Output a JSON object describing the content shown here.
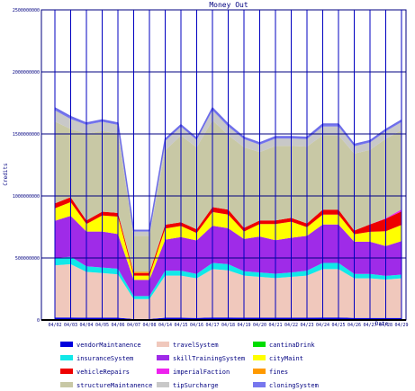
{
  "chart_data": {
    "type": "area",
    "stacked": true,
    "title": "Money Out",
    "xlabel": "Date",
    "ylabel": "Credits",
    "ylim": [
      0,
      2500000000
    ],
    "y_ticks": [
      0,
      500000000,
      1000000000,
      1500000000,
      2000000000,
      2500000000
    ],
    "y_tick_labels": [
      "0",
      "500000000",
      "1000000000",
      "1500000000",
      "2000000000",
      "2500000000"
    ],
    "x_tick_labels": [
      "04/02",
      "04/03",
      "04/04",
      "04/05",
      "04/06",
      "04/07",
      "04/08",
      "04/14",
      "04/15",
      "04/16",
      "04/17",
      "04/18",
      "04/19",
      "04/20",
      "04/21",
      "04/22",
      "04/23",
      "04/24",
      "04/25",
      "04/26",
      "04/27",
      "04/28",
      "04/29"
    ],
    "x": [
      "04/02",
      "04/03",
      "04/04",
      "04/05",
      "04/06",
      "04/07",
      "04/08",
      "04/14",
      "04/15",
      "04/16",
      "04/17",
      "04/18",
      "04/19",
      "04/20",
      "04/21",
      "04/22",
      "04/23",
      "04/24",
      "04/25",
      "04/26",
      "04/27",
      "04/28",
      "04/29"
    ],
    "grid": true,
    "legend_position": "bottom",
    "series": [
      {
        "name": "vendorMaintanence",
        "color": "#0000dd",
        "values": [
          20000000,
          20000000,
          18000000,
          18000000,
          18000000,
          8000000,
          8000000,
          18000000,
          18000000,
          16000000,
          20000000,
          20000000,
          18000000,
          18000000,
          18000000,
          18000000,
          18000000,
          20000000,
          20000000,
          16000000,
          16000000,
          16000000,
          16000000
        ]
      },
      {
        "name": "travelSystem",
        "color": "#f0c8bc",
        "values": [
          420000000,
          430000000,
          370000000,
          360000000,
          350000000,
          160000000,
          160000000,
          340000000,
          340000000,
          320000000,
          390000000,
          380000000,
          340000000,
          330000000,
          320000000,
          330000000,
          340000000,
          390000000,
          390000000,
          320000000,
          320000000,
          310000000,
          320000000
        ]
      },
      {
        "name": "cantinaDrink",
        "color": "#00dd00",
        "values": [
          0,
          0,
          0,
          0,
          0,
          0,
          0,
          0,
          0,
          0,
          0,
          0,
          0,
          0,
          0,
          0,
          0,
          0,
          0,
          0,
          0,
          0,
          0
        ]
      },
      {
        "name": "insuranceSystem",
        "color": "#11e8e8",
        "values": [
          60000000,
          60000000,
          45000000,
          45000000,
          45000000,
          25000000,
          25000000,
          40000000,
          40000000,
          35000000,
          50000000,
          50000000,
          35000000,
          35000000,
          35000000,
          35000000,
          40000000,
          50000000,
          50000000,
          35000000,
          35000000,
          30000000,
          30000000
        ]
      },
      {
        "name": "skillTrainingSystem",
        "color": "#9f2be8",
        "values": [
          300000000,
          330000000,
          280000000,
          290000000,
          280000000,
          130000000,
          130000000,
          250000000,
          270000000,
          270000000,
          300000000,
          290000000,
          260000000,
          290000000,
          270000000,
          280000000,
          280000000,
          310000000,
          310000000,
          260000000,
          260000000,
          240000000,
          270000000
        ]
      },
      {
        "name": "cityMaint",
        "color": "#ffff00",
        "values": [
          100000000,
          110000000,
          60000000,
          130000000,
          140000000,
          35000000,
          35000000,
          90000000,
          90000000,
          60000000,
          110000000,
          110000000,
          60000000,
          100000000,
          130000000,
          130000000,
          70000000,
          80000000,
          80000000,
          60000000,
          80000000,
          120000000,
          130000000
        ]
      },
      {
        "name": "vehicleRepairs",
        "color": "#ee0000",
        "values": [
          40000000,
          40000000,
          30000000,
          30000000,
          30000000,
          20000000,
          20000000,
          30000000,
          30000000,
          30000000,
          40000000,
          40000000,
          30000000,
          30000000,
          30000000,
          30000000,
          30000000,
          40000000,
          40000000,
          30000000,
          60000000,
          100000000,
          110000000
        ]
      },
      {
        "name": "imperialFaction",
        "color": "#ee22ee",
        "values": [
          0,
          0,
          0,
          0,
          0,
          0,
          0,
          0,
          0,
          0,
          0,
          0,
          0,
          0,
          0,
          0,
          0,
          0,
          0,
          0,
          0,
          5000000,
          15000000
        ]
      },
      {
        "name": "fines",
        "color": "#ff9900",
        "values": [
          0,
          0,
          0,
          0,
          0,
          10000000,
          10000000,
          0,
          0,
          0,
          0,
          0,
          0,
          0,
          0,
          0,
          0,
          0,
          0,
          0,
          0,
          0,
          0
        ]
      },
      {
        "name": "structureMaintanence",
        "color": "#c8c8a5",
        "values": [
          660000000,
          550000000,
          700000000,
          650000000,
          640000000,
          290000000,
          290000000,
          600000000,
          700000000,
          660000000,
          700000000,
          600000000,
          650000000,
          550000000,
          600000000,
          580000000,
          620000000,
          600000000,
          600000000,
          620000000,
          600000000,
          640000000,
          640000000
        ]
      },
      {
        "name": "tipSurcharge",
        "color": "#c8c8c8",
        "values": [
          90000000,
          80000000,
          70000000,
          75000000,
          70000000,
          35000000,
          35000000,
          75000000,
          70000000,
          60000000,
          80000000,
          70000000,
          65000000,
          60000000,
          60000000,
          60000000,
          60000000,
          70000000,
          70000000,
          60000000,
          60000000,
          60000000,
          65000000
        ]
      },
      {
        "name": "cloningSystem",
        "color": "#7777ee",
        "values": [
          20000000,
          20000000,
          15000000,
          15000000,
          15000000,
          10000000,
          10000000,
          15000000,
          15000000,
          15000000,
          20000000,
          20000000,
          15000000,
          15000000,
          15000000,
          15000000,
          15000000,
          20000000,
          20000000,
          15000000,
          15000000,
          15000000,
          15000000
        ]
      }
    ]
  }
}
